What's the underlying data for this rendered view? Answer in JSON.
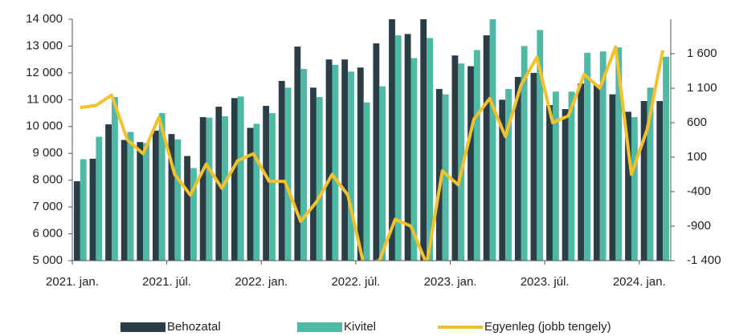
{
  "chart_data": {
    "type": "bar_line",
    "categories": [
      "2021. jan.",
      null,
      null,
      null,
      null,
      null,
      "2021. júl.",
      null,
      null,
      null,
      null,
      null,
      "2022. jan.",
      null,
      null,
      null,
      null,
      null,
      "2022. júl.",
      null,
      null,
      null,
      null,
      null,
      "2023. jan.",
      null,
      null,
      null,
      null,
      null,
      "2023. júl.",
      null,
      null,
      null,
      null,
      null,
      "2024. jan.",
      null
    ],
    "series": [
      {
        "name": "Behozatal",
        "color": "#2b3d47",
        "values": [
          7960,
          8800,
          10080,
          9500,
          9420,
          9850,
          9720,
          8900,
          10350,
          10740,
          11060,
          9950,
          10770,
          11700,
          12980,
          11450,
          12500,
          12500,
          12200,
          13100,
          14200,
          13450,
          14200,
          11400,
          12650,
          12250,
          13400,
          11000,
          11850,
          12000,
          10800,
          10650,
          11600,
          11550,
          11200,
          10550,
          10950,
          10950
        ]
      },
      {
        "name": "Kivitel",
        "color": "#4fb9a5",
        "values": [
          8780,
          9620,
          11100,
          9800,
          9380,
          10500,
          9520,
          8450,
          10330,
          10380,
          11120,
          10100,
          10500,
          11450,
          12150,
          11100,
          12300,
          12050,
          10900,
          11500,
          13400,
          12550,
          13300,
          11200,
          12350,
          12850,
          14100,
          11400,
          13000,
          13600,
          11300,
          11300,
          12750,
          12800,
          12950,
          10350,
          11450,
          12600
        ]
      },
      {
        "name": "Egyenleg (jobb tengely)",
        "color": "#f2c12e",
        "axis": "y2",
        "values": [
          820,
          850,
          1000,
          350,
          150,
          680,
          -150,
          -450,
          0,
          -350,
          50,
          150,
          -250,
          -250,
          -830,
          -550,
          -150,
          -450,
          -1450,
          -1400,
          -800,
          -900,
          -1450,
          -100,
          -300,
          650,
          950,
          400,
          1150,
          1550,
          600,
          700,
          1300,
          1100,
          1700,
          -150,
          500,
          1650
        ]
      }
    ],
    "ylim": [
      5000,
      14000
    ],
    "yticks": [
      {
        "value": 5000,
        "label": "5 000"
      },
      {
        "value": 6000,
        "label": "6 000"
      },
      {
        "value": 7000,
        "label": "7 000"
      },
      {
        "value": 8000,
        "label": "8 000"
      },
      {
        "value": 9000,
        "label": "9 000"
      },
      {
        "value": 10000,
        "label": "10 000"
      },
      {
        "value": 11000,
        "label": "11 000"
      },
      {
        "value": 12000,
        "label": "12 000"
      },
      {
        "value": 13000,
        "label": "13 000"
      },
      {
        "value": 14000,
        "label": "14 000"
      }
    ],
    "y2lim": [
      -1400,
      2100
    ],
    "y2ticks": [
      {
        "value": -1400,
        "label": "-1 400"
      },
      -900,
      -400,
      100,
      600,
      {
        "value": 1100,
        "label": "1 100"
      },
      {
        "value": 1600,
        "label": "1 600"
      }
    ],
    "legend": "bottom"
  }
}
